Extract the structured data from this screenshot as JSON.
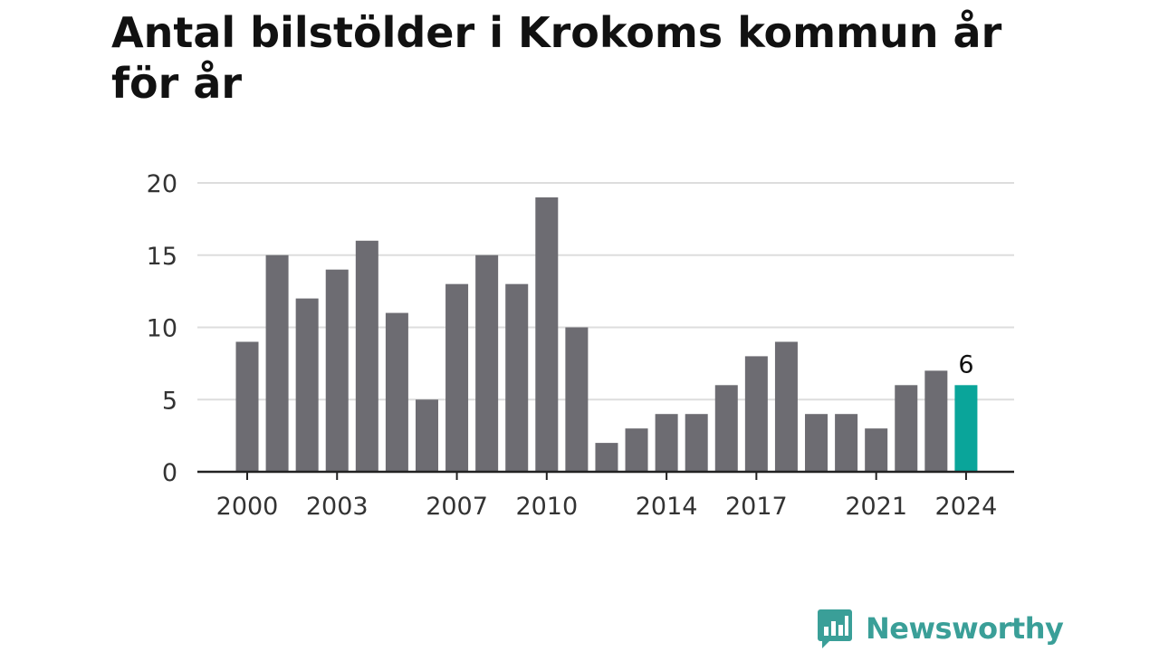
{
  "chart_data": {
    "type": "bar",
    "title": "Antal bilstölder i Krokoms kommun år för år",
    "xlabel": "",
    "ylabel": "",
    "categories": [
      "2000",
      "2001",
      "2002",
      "2003",
      "2004",
      "2005",
      "2006",
      "2007",
      "2008",
      "2009",
      "2010",
      "2011",
      "2012",
      "2013",
      "2014",
      "2015",
      "2016",
      "2017",
      "2018",
      "2019",
      "2020",
      "2021",
      "2022",
      "2023",
      "2024"
    ],
    "values": [
      9,
      15,
      12,
      14,
      16,
      11,
      5,
      13,
      15,
      13,
      19,
      10,
      2,
      3,
      4,
      4,
      6,
      8,
      9,
      4,
      4,
      3,
      6,
      7,
      6
    ],
    "x_tick_labels": [
      "2000",
      "2003",
      "2007",
      "2010",
      "2014",
      "2017",
      "2021",
      "2024"
    ],
    "y_ticks": [
      0,
      5,
      10,
      15,
      20
    ],
    "ylim": [
      0,
      20
    ],
    "grid": true,
    "bar_color": "#6d6c72",
    "highlight_color": "#0aa59a",
    "highlight_category": "2024",
    "data_labels": [
      {
        "category": "2024",
        "text": "6"
      }
    ]
  },
  "brand": {
    "name": "Newsworthy",
    "color": "#3a9f98",
    "icon": "bar-chart-speech-bubble-icon"
  }
}
